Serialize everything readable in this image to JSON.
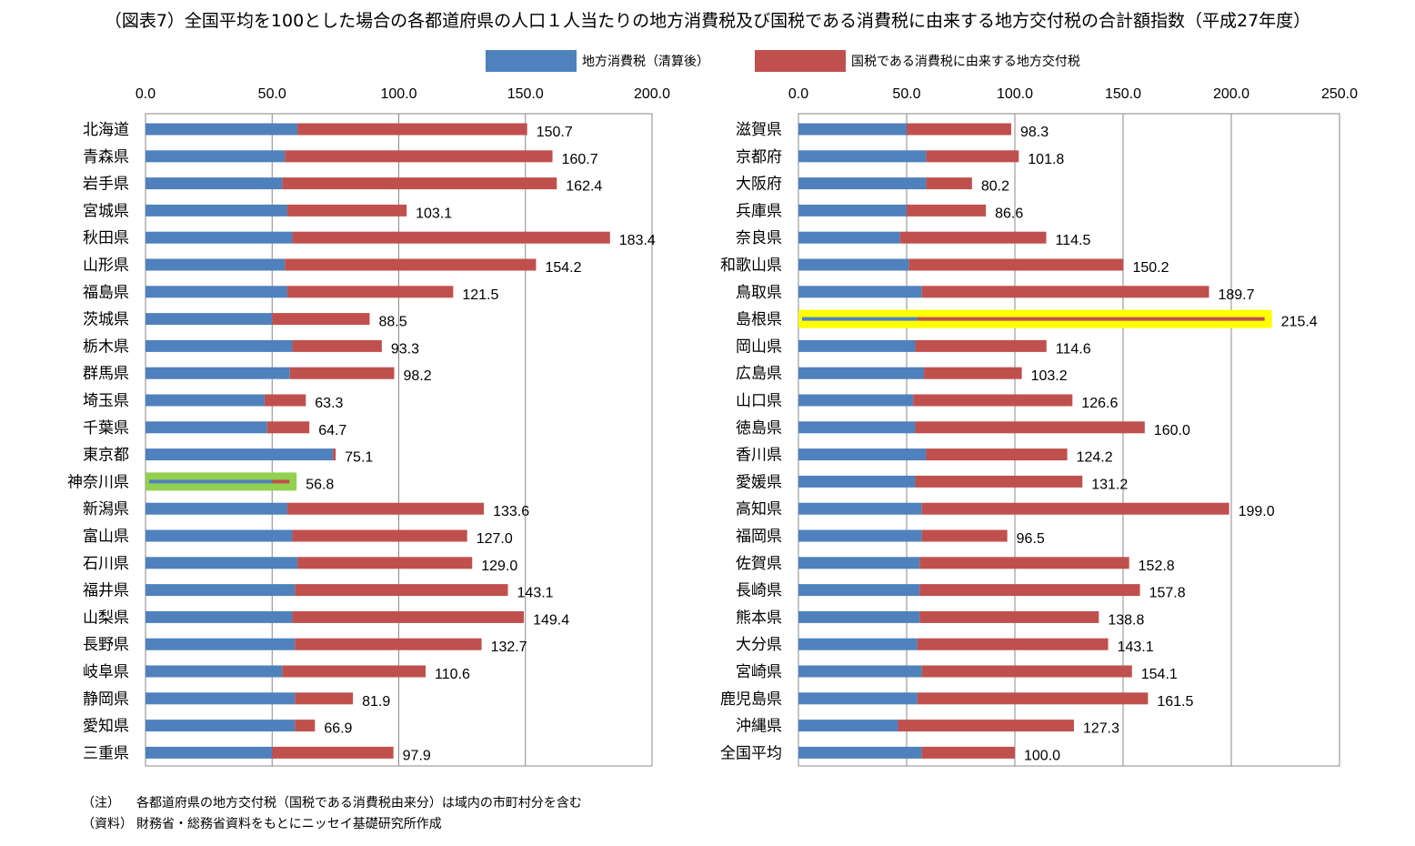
{
  "title": "（図表7）全国平均を100とした場合の各都道府県の人口１人当たりの地方消費税及び国税である消費税に由来する地方交付税の合計額指数（平成27年度）",
  "legend": [
    {
      "label": "地方消費税（清算後）",
      "color": "#4f81bd"
    },
    {
      "label": "国税である消費税に由来する地方交付税",
      "color": "#c0504d"
    }
  ],
  "highlight_colors": {
    "left": "#92d050",
    "right": "#ffff00"
  },
  "notes": [
    {
      "key": "（注）",
      "text": "各都道府県の地方交付税（国税である消費税由来分）は域内の市町村分を含む"
    },
    {
      "key": "（資料）",
      "text": "財務省・総務省資料をもとにニッセイ基礎研究所作成"
    }
  ],
  "chart_data": [
    {
      "type": "bar",
      "orientation": "horizontal",
      "stacked": true,
      "xlim": [
        0,
        200
      ],
      "ticks": [
        "0.0",
        "50.0",
        "100.0",
        "150.0",
        "200.0"
      ],
      "grid": true,
      "highlight": "神奈川県",
      "categories": [
        "北海道",
        "青森県",
        "岩手県",
        "宮城県",
        "秋田県",
        "山形県",
        "福島県",
        "茨城県",
        "栃木県",
        "群馬県",
        "埼玉県",
        "千葉県",
        "東京都",
        "神奈川県",
        "新潟県",
        "富山県",
        "石川県",
        "福井県",
        "山梨県",
        "長野県",
        "岐阜県",
        "静岡県",
        "愛知県",
        "三重県"
      ],
      "series": [
        {
          "name": "地方消費税（清算後）",
          "values": [
            60,
            55,
            54,
            56,
            58,
            55,
            56,
            50,
            58,
            57,
            47,
            48,
            74,
            50,
            56,
            58,
            60,
            59,
            58,
            59,
            54,
            59,
            59,
            50
          ]
        },
        {
          "name": "国税である消費税に由来する地方交付税",
          "values": [
            90.7,
            105.7,
            108.4,
            47.1,
            125.4,
            99.2,
            65.5,
            38.5,
            35.3,
            41.2,
            16.3,
            16.7,
            1.1,
            6.8,
            77.6,
            69.0,
            69.0,
            84.1,
            91.4,
            73.7,
            56.6,
            22.9,
            7.9,
            47.9
          ]
        }
      ],
      "totals": [
        "150.7",
        "160.7",
        "162.4",
        "103.1",
        "183.4",
        "154.2",
        "121.5",
        "88.5",
        "93.3",
        "98.2",
        "63.3",
        "64.7",
        "75.1",
        "56.8",
        "133.6",
        "127.0",
        "129.0",
        "143.1",
        "149.4",
        "132.7",
        "110.6",
        "81.9",
        "66.9",
        "97.9"
      ]
    },
    {
      "type": "bar",
      "orientation": "horizontal",
      "stacked": true,
      "xlim": [
        0,
        250
      ],
      "ticks": [
        "0.0",
        "50.0",
        "100.0",
        "150.0",
        "200.0",
        "250.0"
      ],
      "grid": true,
      "highlight": "島根県",
      "categories": [
        "滋賀県",
        "京都府",
        "大阪府",
        "兵庫県",
        "奈良県",
        "和歌山県",
        "鳥取県",
        "島根県",
        "岡山県",
        "広島県",
        "山口県",
        "徳島県",
        "香川県",
        "愛媛県",
        "高知県",
        "福岡県",
        "佐賀県",
        "長崎県",
        "熊本県",
        "大分県",
        "宮崎県",
        "鹿児島県",
        "沖縄県",
        "全国平均"
      ],
      "series": [
        {
          "name": "地方消費税（清算後）",
          "values": [
            50,
            59,
            59,
            50,
            47,
            51,
            57,
            55,
            54,
            58,
            53,
            54,
            59,
            54,
            57,
            57,
            56,
            56,
            56,
            55,
            57,
            55,
            46,
            57
          ]
        },
        {
          "name": "国税である消費税に由来する地方交付税",
          "values": [
            48.3,
            42.8,
            21.2,
            36.6,
            67.5,
            99.2,
            132.7,
            160.4,
            60.6,
            45.2,
            73.6,
            106.0,
            65.2,
            77.2,
            142.0,
            39.5,
            96.8,
            101.8,
            82.8,
            88.1,
            97.1,
            106.5,
            81.3,
            43.0
          ]
        }
      ],
      "totals": [
        "98.3",
        "101.8",
        "80.2",
        "86.6",
        "114.5",
        "150.2",
        "189.7",
        "215.4",
        "114.6",
        "103.2",
        "126.6",
        "160.0",
        "124.2",
        "131.2",
        "199.0",
        "96.5",
        "152.8",
        "157.8",
        "138.8",
        "143.1",
        "154.1",
        "161.5",
        "127.3",
        "100.0"
      ]
    }
  ]
}
